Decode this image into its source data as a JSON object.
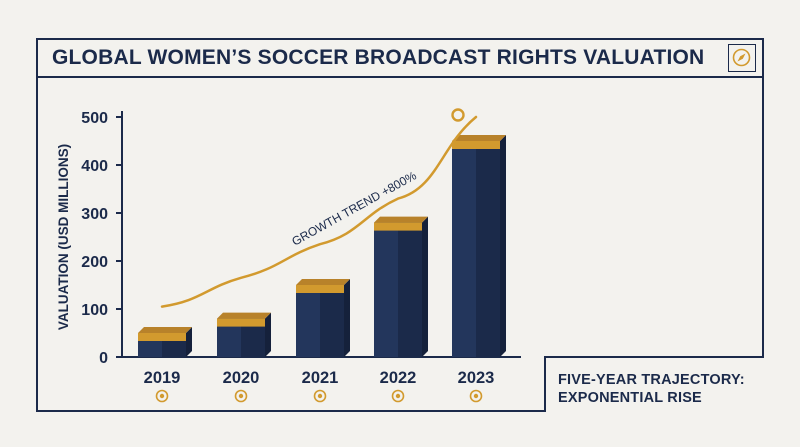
{
  "header": {
    "title": "GLOBAL WOMEN’S SOCCER BROADCAST RIGHTS VALUATION",
    "compass_icon": "compass-icon"
  },
  "callout": {
    "line1": "FIVE-YEAR TRAJECTORY:",
    "line2": "EXPONENTIAL RISE"
  },
  "colors": {
    "navy": "#1b2a4a",
    "navy_dark": "#15213b",
    "gold": "#d29a2e",
    "background": "#f3f2ee"
  },
  "chart_data": {
    "type": "bar",
    "categories": [
      "2019",
      "2020",
      "2021",
      "2022",
      "2023"
    ],
    "values": [
      50,
      80,
      150,
      280,
      450
    ],
    "ylabel": "VALUATION (USD MILLIONS)",
    "xlabel": "",
    "ylim": [
      0,
      500
    ],
    "yticks": [
      0,
      100,
      200,
      300,
      400,
      500
    ],
    "grid": false,
    "trend": {
      "label": "GROWTH TREND +800%",
      "values": [
        105,
        165,
        235,
        330,
        500
      ]
    },
    "category_icon": "coin-icon"
  }
}
